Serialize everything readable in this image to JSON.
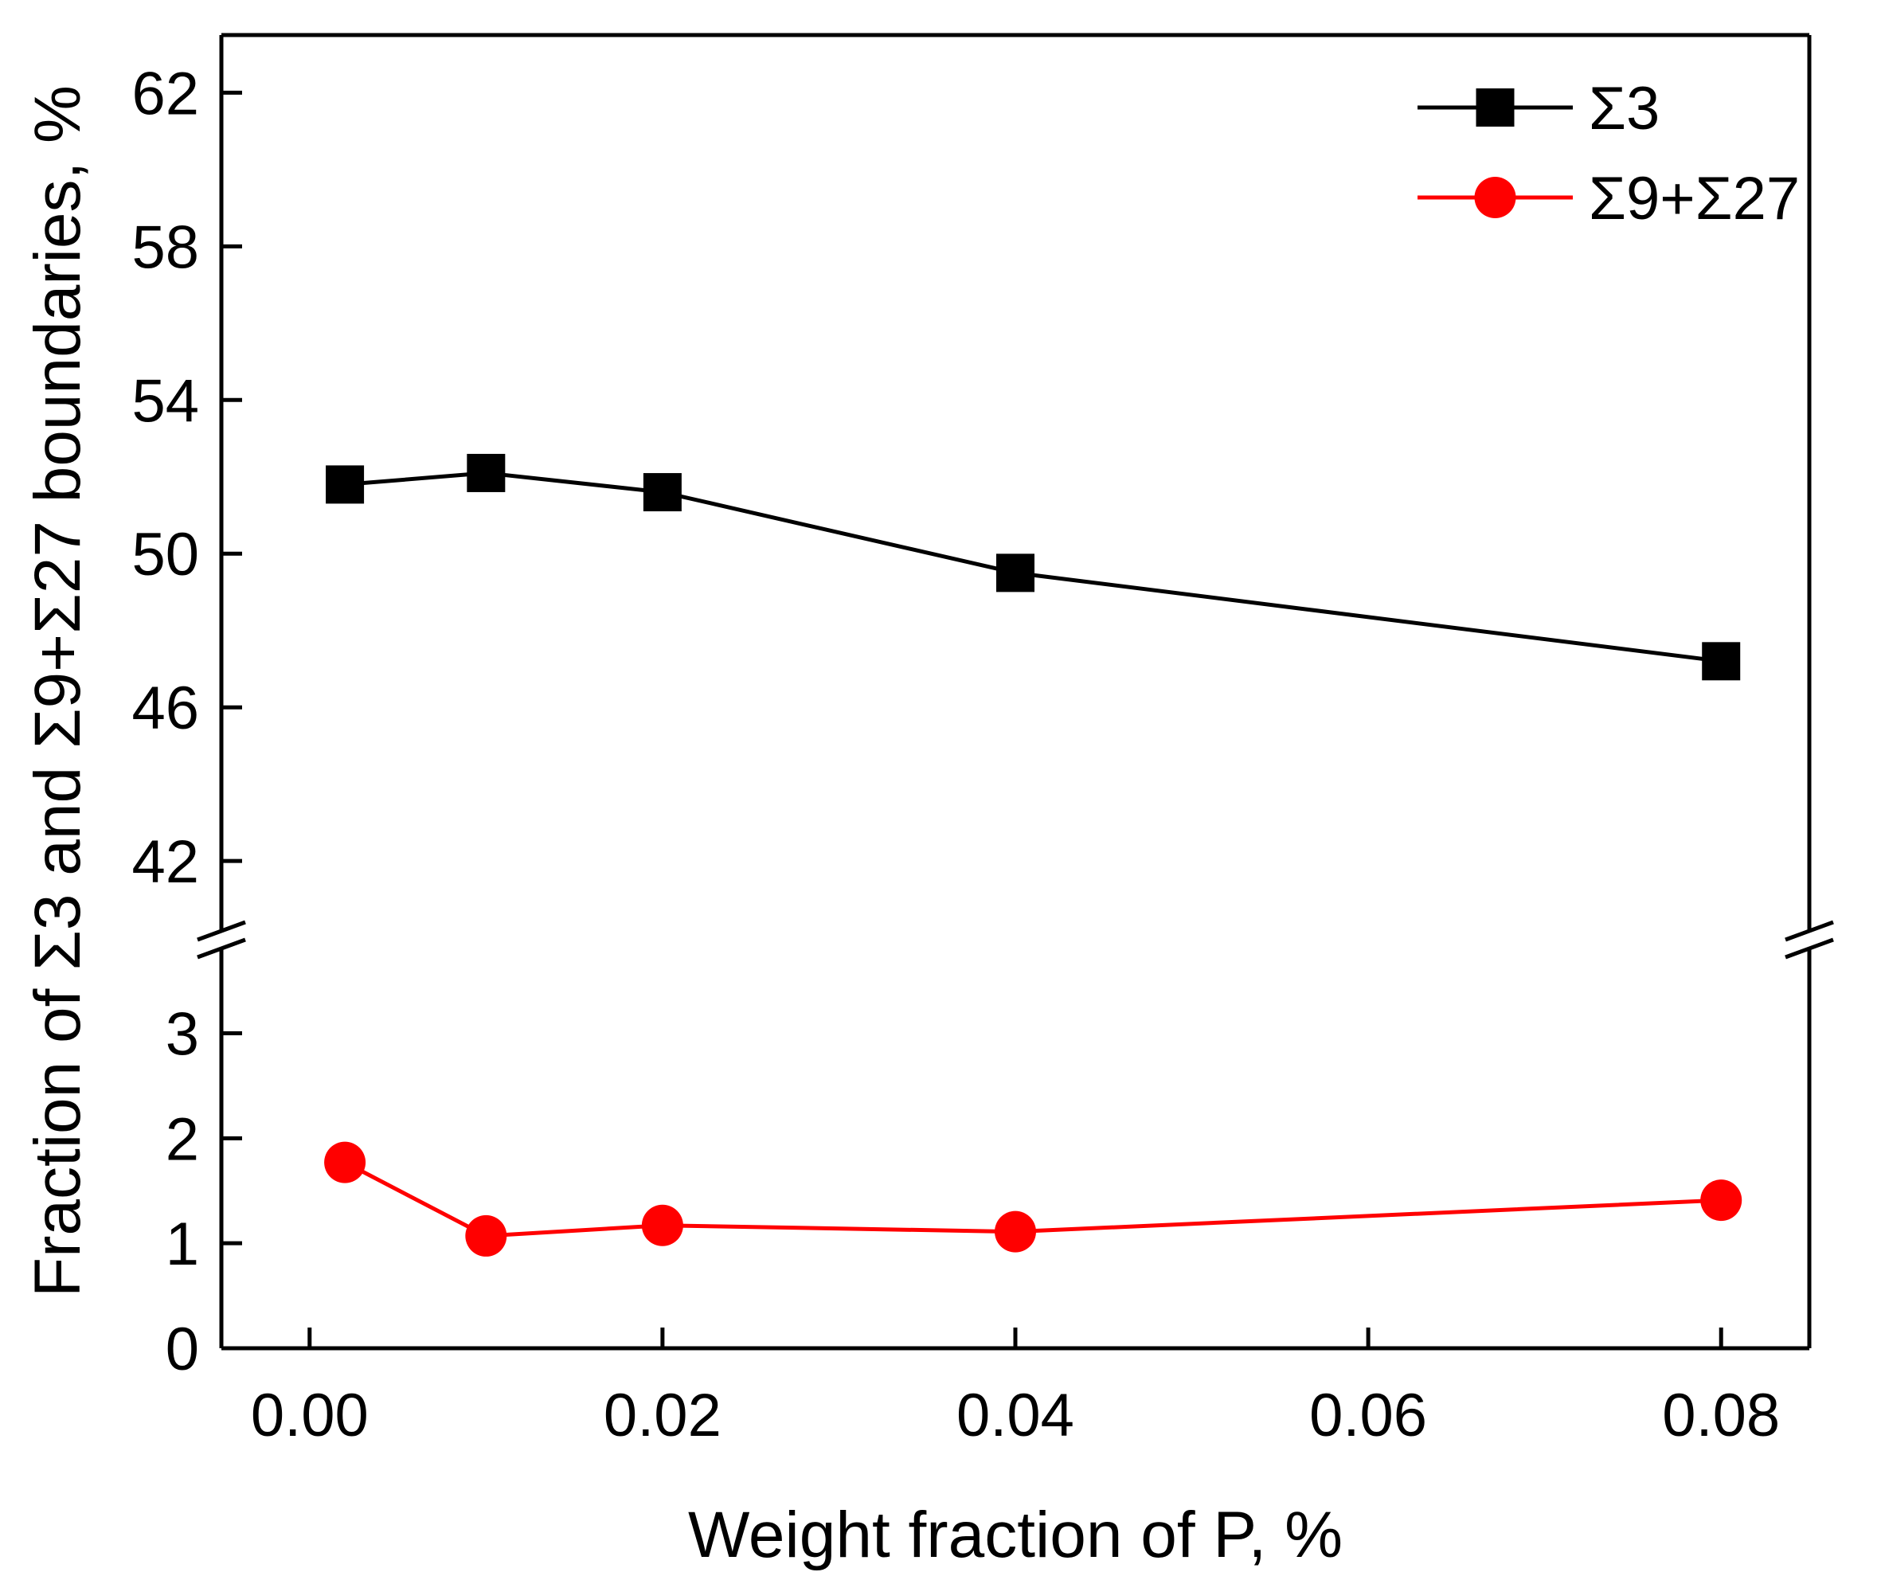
{
  "chart_data": {
    "type": "line",
    "xlabel": "Weight fraction of P, %",
    "ylabel": "Fraction of Σ3 and Σ9+Σ27 boundaries, %",
    "xlim": [
      -0.005,
      0.085
    ],
    "x_ticks": [
      "0.00",
      "0.02",
      "0.04",
      "0.06",
      "0.08"
    ],
    "y_axis_break": true,
    "ylim_lower": [
      0,
      3.8
    ],
    "ylim_upper": [
      40.2,
      63.5
    ],
    "y_ticks_lower": [
      "0",
      "1",
      "2",
      "3"
    ],
    "y_ticks_upper": [
      "42",
      "46",
      "50",
      "54",
      "58",
      "62"
    ],
    "legend_position": "top-right",
    "grid": false,
    "series": [
      {
        "name": "Σ3",
        "color": "#000000",
        "marker": "square",
        "x": [
          0.002,
          0.01,
          0.02,
          0.04,
          0.08
        ],
        "y": [
          51.8,
          52.1,
          51.6,
          49.5,
          47.2
        ]
      },
      {
        "name": "Σ9+Σ27",
        "color": "#ff0000",
        "marker": "circle",
        "x": [
          0.002,
          0.01,
          0.02,
          0.04,
          0.08
        ],
        "y": [
          1.77,
          1.07,
          1.17,
          1.11,
          1.41
        ]
      }
    ]
  }
}
